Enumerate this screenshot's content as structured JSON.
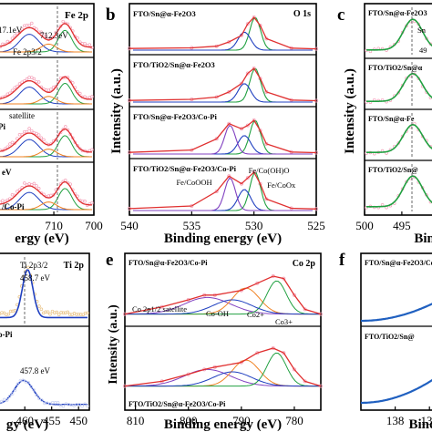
{
  "panels": [
    {
      "id": "a",
      "letter": "",
      "corner_label": "Fe 2p",
      "stack_labels": [
        "",
        "",
        "",
        ""
      ],
      "annotations": [
        "17.1eV",
        "712.3eV",
        "Fe 2p3/2",
        "satellite",
        "Pi",
        "eV",
        "/Co-Pi"
      ],
      "xlabel": "ergy (eV)",
      "ylabel": "",
      "xticks": [
        710,
        700
      ]
    },
    {
      "id": "b",
      "letter": "b",
      "corner_label": "O 1s",
      "stack_labels": [
        "FTO/Sn@α-Fe2O3",
        "FTO/TiO2/Sn@α-Fe2O3",
        "FTO/Sn@α-Fe2O3/Co-Pi",
        "FTO/TiO2/Sn@α-Fe2O3/Co-Pi"
      ],
      "annotations": [
        "Fe/Co(OH)O",
        "Fe/CoOOH",
        "Fe/CoOx"
      ],
      "xlabel": "Binding energy (eV)",
      "ylabel": "Intensity (a.u.)",
      "xticks": [
        540,
        535,
        530,
        525
      ]
    },
    {
      "id": "c",
      "letter": "c",
      "corner_label": "",
      "stack_labels": [
        "FTO/Sn@α-Fe2O3",
        "FTO/TiO2/Sn@α",
        "FTO/Sn@α-Fe",
        "FTO/TiO2/Sn@"
      ],
      "annotations": [
        "Sn",
        "49"
      ],
      "xlabel": "Bindin",
      "ylabel": "Intensity (a.u.)",
      "xticks": [
        500,
        495
      ]
    },
    {
      "id": "d",
      "letter": "",
      "corner_label": "Ti 2p",
      "stack_labels": [
        "",
        "o-Pi"
      ],
      "annotations": [
        "Ti 2p3/2",
        "458.7 eV",
        "457.8 eV"
      ],
      "xlabel": "gy (eV)",
      "ylabel": "",
      "xticks": [
        460,
        455,
        450
      ]
    },
    {
      "id": "e",
      "letter": "e",
      "corner_label": "Co 2p",
      "stack_labels": [
        "FTO/Sn@α-Fe2O3/Co-Pi",
        "FTO/TiO2/Sn@α-Fe2O3/Co-Pi"
      ],
      "annotations": [
        "Co 2p1/2 satellite",
        "Co-OH",
        "Co2+",
        "Co3+"
      ],
      "xlabel": "Binding energy (eV)",
      "ylabel": "Intensity (a.u.)",
      "xticks": [
        810,
        800,
        790,
        780
      ]
    },
    {
      "id": "f",
      "letter": "f",
      "corner_label": "",
      "stack_labels": [
        "FTO/Sn@α-Fe2O3/Co",
        "FTO/TiO2/Sn@"
      ],
      "annotations": [],
      "xlabel": "Bindi",
      "ylabel": "",
      "xticks": [
        138,
        136
      ]
    }
  ],
  "colors": {
    "data_points": "#f4a0b8",
    "envelope": "#e03030",
    "peak_blue": "#2040c0",
    "peak_green": "#20a040",
    "peak_orange": "#f08020",
    "peak_purple": "#8040c0",
    "ti_points": "#e8c080",
    "sn_green": "#20a040",
    "f_line": "#2060c0"
  },
  "chart_data": [
    {
      "type": "line",
      "panel": "b",
      "title": "O 1s",
      "xlabel": "Binding energy (eV)",
      "ylabel": "Intensity (a.u.)",
      "xlim": [
        540,
        525
      ],
      "series": [
        {
          "name": "FTO/Sn@α-Fe2O3",
          "x": [
            540,
            535,
            533,
            532,
            531,
            530.5,
            530,
            529.5,
            529,
            527,
            525
          ],
          "y": [
            0.05,
            0.07,
            0.12,
            0.25,
            0.45,
            0.8,
            1.0,
            0.75,
            0.35,
            0.06,
            0.04
          ]
        },
        {
          "name": "FTO/TiO2/Sn@α-Fe2O3",
          "x": [
            540,
            535,
            533,
            532,
            531,
            530.5,
            530,
            529.5,
            529,
            527,
            525
          ],
          "y": [
            0.05,
            0.08,
            0.15,
            0.3,
            0.55,
            0.85,
            1.0,
            0.7,
            0.3,
            0.06,
            0.04
          ]
        },
        {
          "name": "FTO/Sn@α-Fe2O3/Co-Pi",
          "x": [
            540,
            535,
            533,
            532,
            531,
            530.5,
            530,
            529.5,
            529,
            527,
            525
          ],
          "y": [
            0.05,
            0.12,
            0.45,
            0.9,
            0.75,
            0.85,
            1.0,
            0.7,
            0.3,
            0.06,
            0.04
          ]
        },
        {
          "name": "FTO/TiO2/Sn@α-Fe2O3/Co-Pi",
          "x": [
            540,
            535,
            533,
            532,
            531,
            530.5,
            530,
            529.5,
            529,
            527,
            525
          ],
          "y": [
            0.05,
            0.12,
            0.5,
            0.9,
            0.7,
            0.85,
            1.0,
            0.7,
            0.3,
            0.06,
            0.04
          ]
        }
      ]
    },
    {
      "type": "line",
      "panel": "e",
      "title": "Co 2p",
      "xlabel": "Binding energy (eV)",
      "ylabel": "Intensity (a.u.)",
      "xlim": [
        812,
        775
      ],
      "series": [
        {
          "name": "FTO/Sn@α-Fe2O3/Co-Pi",
          "x": [
            812,
            805,
            800,
            797,
            795,
            790,
            787,
            784,
            782,
            780,
            778,
            775
          ],
          "y": [
            0.2,
            0.35,
            0.5,
            0.6,
            0.6,
            0.7,
            0.85,
            1.0,
            0.95,
            0.6,
            0.3,
            0.2
          ]
        },
        {
          "name": "FTO/TiO2/Sn@α-Fe2O3/Co-Pi",
          "x": [
            812,
            805,
            800,
            797,
            795,
            790,
            787,
            784,
            782,
            780,
            778,
            775
          ],
          "y": [
            0.2,
            0.3,
            0.45,
            0.55,
            0.6,
            0.7,
            0.9,
            1.0,
            0.9,
            0.55,
            0.3,
            0.2
          ]
        }
      ]
    }
  ]
}
